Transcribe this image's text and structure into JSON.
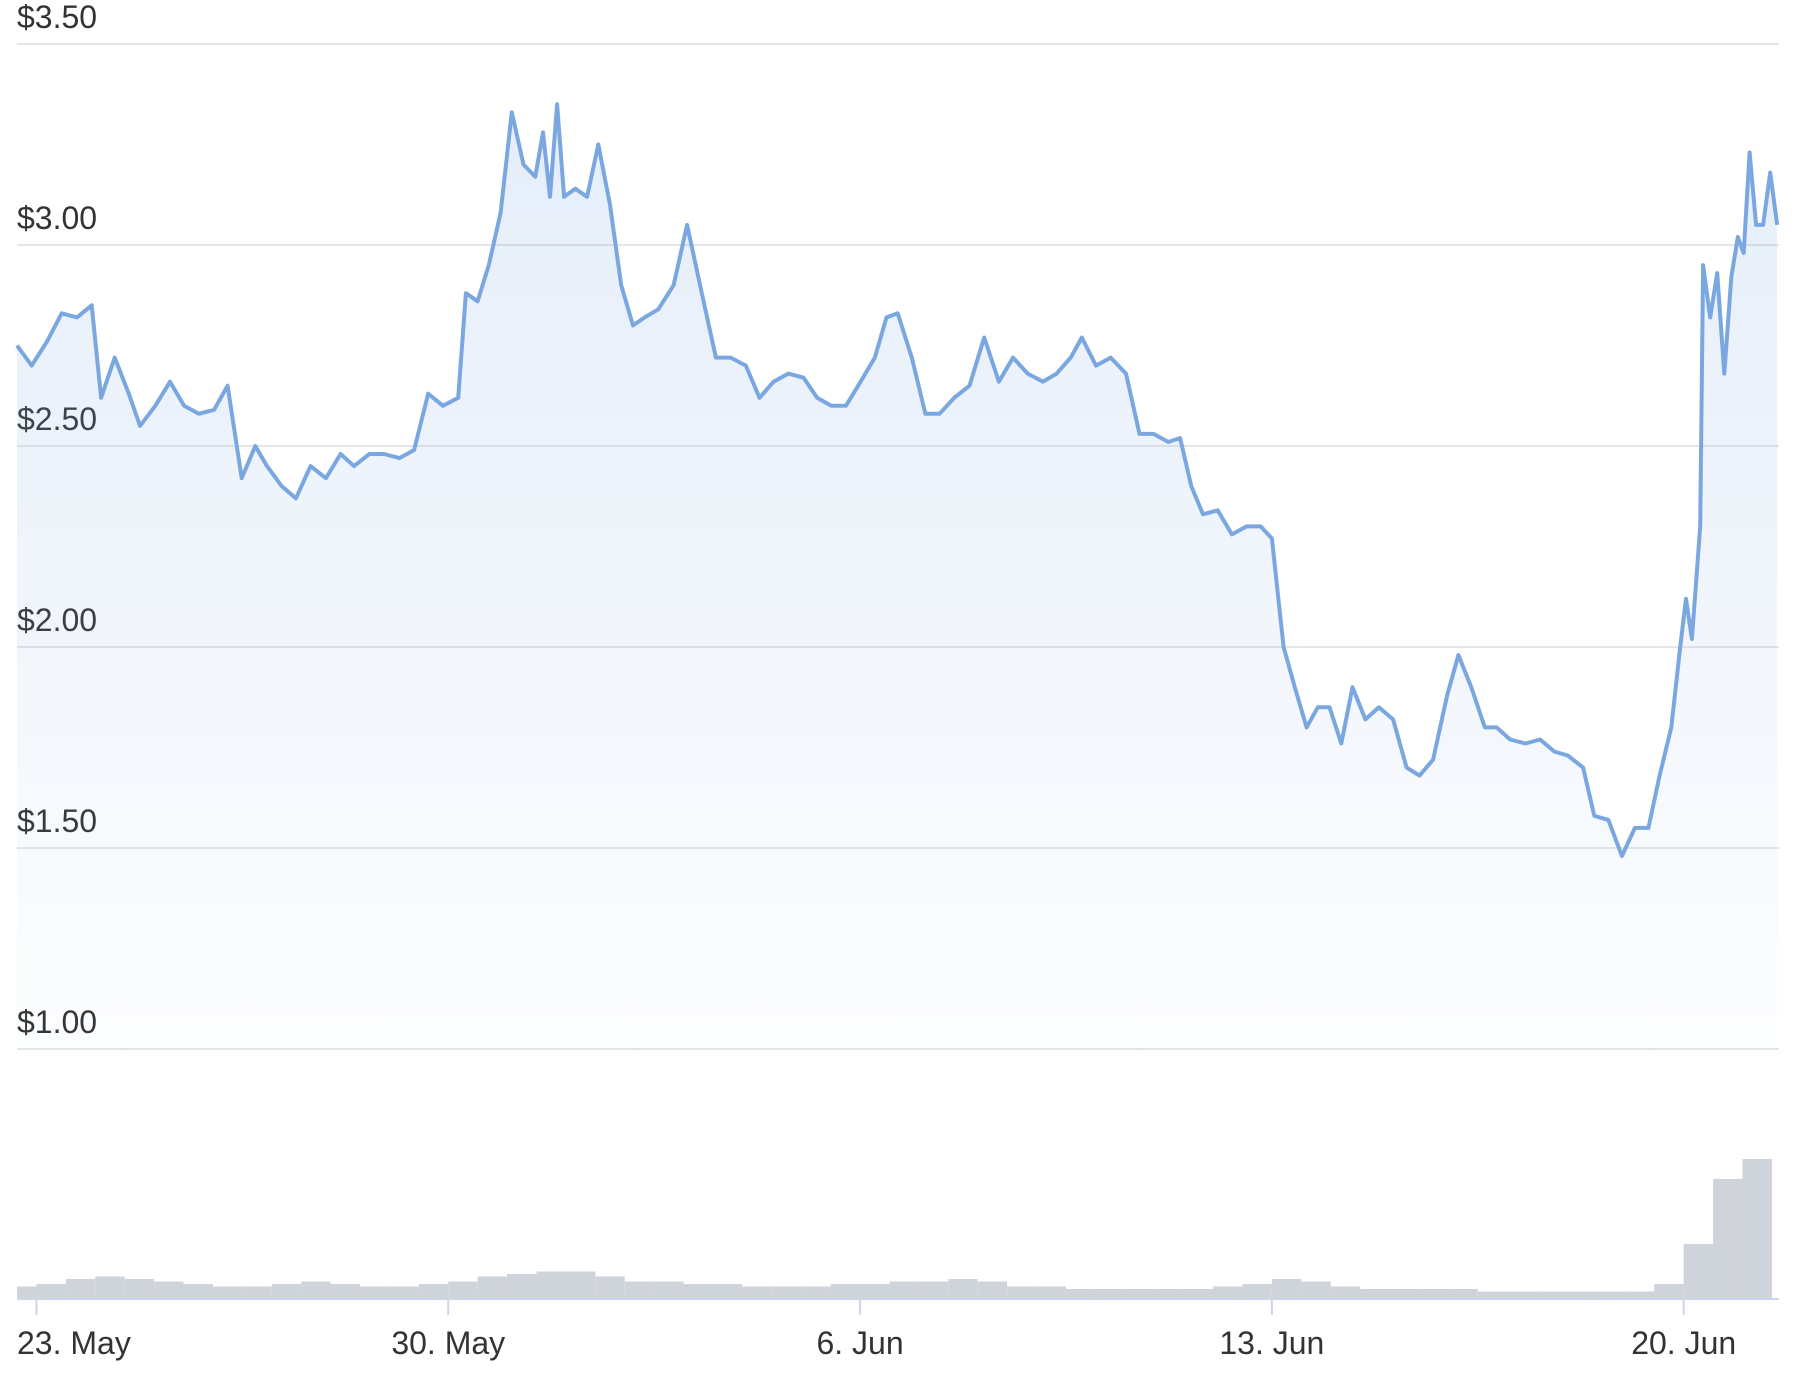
{
  "chart_data": [
    {
      "type": "line",
      "color": "#7ba7e1",
      "x": [
        22.67,
        22.92,
        23.18,
        23.43,
        23.69,
        23.94,
        24.1,
        24.33,
        24.57,
        24.76,
        25.02,
        25.27,
        25.51,
        25.76,
        26.02,
        26.25,
        26.49,
        26.72,
        26.92,
        27.17,
        27.41,
        27.66,
        27.92,
        28.17,
        28.4,
        28.66,
        28.91,
        29.17,
        29.42,
        29.66,
        29.91,
        30.17,
        30.3,
        30.5,
        30.69,
        30.89,
        31.08,
        31.28,
        31.48,
        31.61,
        31.73,
        31.85,
        31.97,
        32.16,
        32.36,
        32.55,
        32.75,
        32.94,
        33.14,
        33.34,
        33.57,
        33.83,
        34.06,
        34.31,
        34.55,
        34.8,
        35.06,
        35.29,
        35.53,
        35.78,
        36.04,
        36.27,
        36.51,
        36.76,
        37.01,
        37.25,
        37.45,
        37.64,
        37.88,
        38.11,
        38.35,
        38.6,
        38.86,
        39.11,
        39.36,
        39.6,
        39.85,
        40.11,
        40.34,
        40.58,
        40.77,
        41.01,
        41.26,
        41.52,
        41.75,
        41.99,
        42.24,
        42.44,
        42.63,
        42.83,
        43.08,
        43.32,
        43.57,
        43.81,
        44.0,
        44.2,
        44.39,
        44.59,
        44.78,
        44.98,
        45.18,
        45.37,
        45.59,
        45.82,
        46.06,
        46.29,
        46.51,
        46.74,
        46.98,
        47.17,
        47.39,
        47.62,
        47.82,
        48.05,
        48.31,
        48.56,
        48.8,
        49.03,
        49.29,
        49.48,
        49.72,
        49.95,
        50.17,
        50.4,
        50.59,
        50.79,
        50.94,
        51.04,
        51.14,
        51.28,
        51.33,
        51.45,
        51.57,
        51.69,
        51.81,
        51.92,
        52.02,
        52.12,
        52.23,
        52.35,
        52.47,
        52.59
      ],
      "values": [
        2.75,
        2.7,
        2.76,
        2.83,
        2.82,
        2.85,
        2.62,
        2.72,
        2.63,
        2.55,
        2.6,
        2.66,
        2.6,
        2.58,
        2.59,
        2.65,
        2.42,
        2.5,
        2.45,
        2.4,
        2.37,
        2.45,
        2.42,
        2.48,
        2.45,
        2.48,
        2.48,
        2.47,
        2.49,
        2.63,
        2.6,
        2.62,
        2.88,
        2.86,
        2.95,
        3.08,
        3.33,
        3.2,
        3.17,
        3.28,
        3.12,
        3.35,
        3.12,
        3.14,
        3.12,
        3.25,
        3.1,
        2.9,
        2.8,
        2.82,
        2.84,
        2.9,
        3.05,
        2.88,
        2.72,
        2.72,
        2.7,
        2.62,
        2.66,
        2.68,
        2.67,
        2.62,
        2.6,
        2.6,
        2.66,
        2.72,
        2.82,
        2.83,
        2.72,
        2.58,
        2.58,
        2.62,
        2.65,
        2.77,
        2.66,
        2.72,
        2.68,
        2.66,
        2.68,
        2.72,
        2.77,
        2.7,
        2.72,
        2.68,
        2.53,
        2.53,
        2.51,
        2.52,
        2.4,
        2.33,
        2.34,
        2.28,
        2.3,
        2.3,
        2.27,
        2.0,
        1.9,
        1.8,
        1.85,
        1.85,
        1.76,
        1.9,
        1.82,
        1.85,
        1.82,
        1.7,
        1.68,
        1.72,
        1.88,
        1.98,
        1.9,
        1.8,
        1.8,
        1.77,
        1.76,
        1.77,
        1.74,
        1.73,
        1.7,
        1.58,
        1.57,
        1.48,
        1.55,
        1.55,
        1.68,
        1.8,
        2.0,
        2.12,
        2.02,
        2.3,
        2.95,
        2.82,
        2.93,
        2.68,
        2.92,
        3.02,
        2.98,
        3.23,
        3.05,
        3.05,
        3.18,
        3.05
      ],
      "xlim": [
        22.67,
        52.62
      ],
      "xticks": [
        {
          "value": 23,
          "label": "23. May"
        },
        {
          "value": 30,
          "label": "30. May"
        },
        {
          "value": 37,
          "label": "6. Jun"
        },
        {
          "value": 44,
          "label": "13. Jun"
        },
        {
          "value": 51,
          "label": "20. Jun"
        }
      ],
      "ylim": [
        1,
        3.5
      ],
      "yticks": [
        {
          "value": 1,
          "label": "$1.00"
        },
        {
          "value": 1.5,
          "label": "$1.50"
        },
        {
          "value": 2,
          "label": "$2.00"
        },
        {
          "value": 2.5,
          "label": "$2.50"
        },
        {
          "value": 3,
          "label": "$3.00"
        },
        {
          "value": 3.5,
          "label": "$3.50"
        }
      ],
      "grid": true
    },
    {
      "type": "bar",
      "color": "#cfd3da",
      "x": [
        22.75,
        23.25,
        23.75,
        24.25,
        24.75,
        25.25,
        25.75,
        26.25,
        26.75,
        27.25,
        27.75,
        28.25,
        28.75,
        29.25,
        29.75,
        30.25,
        30.75,
        31.25,
        31.75,
        32.25,
        32.75,
        33.25,
        33.75,
        34.25,
        34.75,
        35.25,
        35.75,
        36.25,
        36.75,
        37.25,
        37.75,
        38.25,
        38.75,
        39.25,
        39.75,
        40.25,
        40.75,
        41.25,
        41.75,
        42.25,
        42.75,
        43.25,
        43.75,
        44.25,
        44.75,
        45.25,
        45.75,
        46.25,
        46.75,
        47.25,
        47.75,
        48.25,
        48.75,
        49.25,
        49.75,
        50.25,
        50.75,
        51.25,
        51.75,
        52.25
      ],
      "values": [
        5,
        6,
        8,
        9,
        8,
        7,
        6,
        5,
        5,
        6,
        7,
        6,
        5,
        5,
        6,
        7,
        9,
        10,
        11,
        11,
        9,
        7,
        7,
        6,
        6,
        5,
        5,
        5,
        6,
        6,
        7,
        7,
        8,
        7,
        5,
        5,
        4,
        4,
        4,
        4,
        4,
        5,
        6,
        8,
        7,
        5,
        4,
        4,
        4,
        4,
        3,
        3,
        3,
        3,
        3,
        3,
        6,
        22,
        48,
        56
      ],
      "xlim": [
        22.67,
        52.62
      ],
      "ylim": [
        0,
        100
      ]
    }
  ]
}
